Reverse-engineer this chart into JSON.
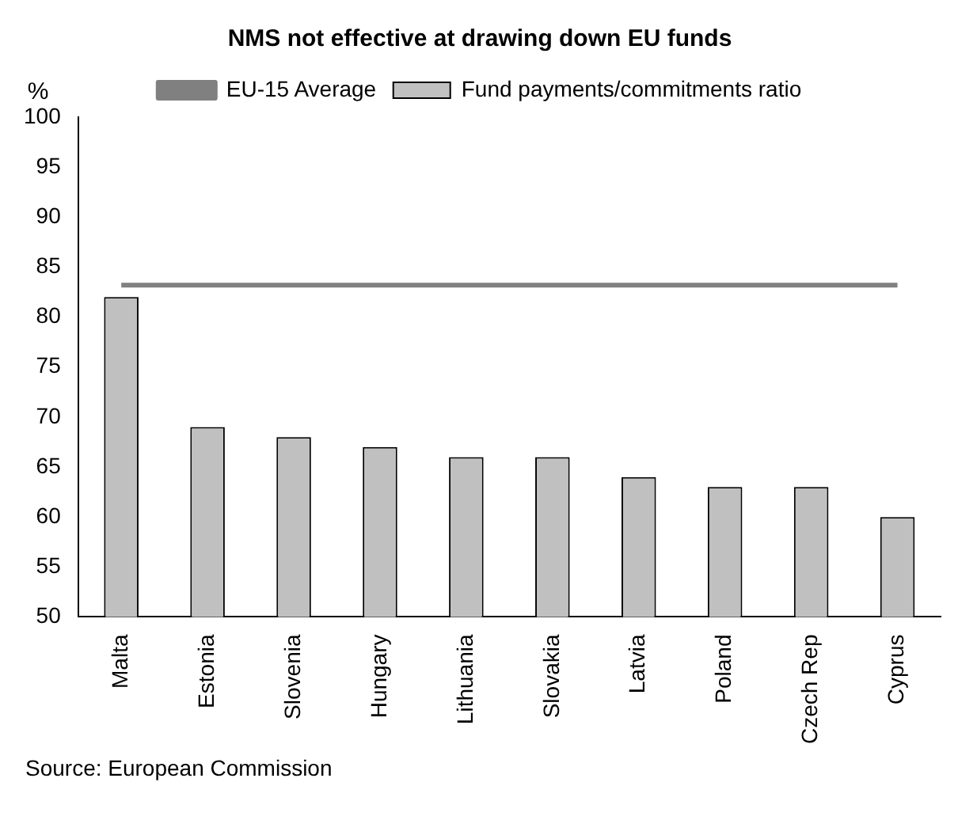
{
  "chart_data": {
    "type": "bar",
    "title": "NMS not effective at drawing down EU funds",
    "ylabel": "%",
    "categories": [
      "Malta",
      "Estonia",
      "Slovenia",
      "Hungary",
      "Lithuania",
      "Slovakia",
      "Latvia",
      "Poland",
      "Czech Rep",
      "Cyprus"
    ],
    "series": [
      {
        "name": "Fund payments/commitments ratio",
        "color": "#c0c0c0",
        "values": [
          82,
          69,
          68,
          67,
          66,
          66,
          64,
          63,
          63,
          60
        ]
      },
      {
        "name": "EU-15 Average",
        "type": "line",
        "color": "#808080",
        "values": [
          83.2,
          83.2,
          83.2,
          83.2,
          83.2,
          83.2,
          83.2,
          83.2,
          83.2,
          83.2
        ]
      }
    ],
    "ylim": [
      50,
      100
    ],
    "yticks": [
      50,
      55,
      60,
      65,
      70,
      75,
      80,
      85,
      90,
      95,
      100
    ],
    "grid": false,
    "legend": "top",
    "marker": "none",
    "annotations": [
      "Source: European Commission"
    ]
  }
}
